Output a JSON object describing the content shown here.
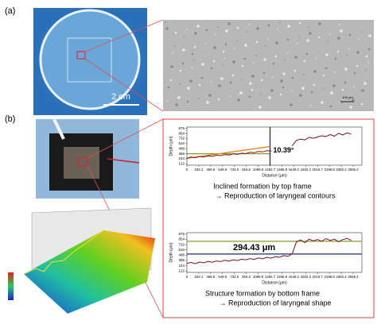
{
  "panel_a": {
    "label": "(a)",
    "scale_bar": "2 cm",
    "micro_scale": "100 μm"
  },
  "panel_b": {
    "label": "(b)"
  },
  "profiles": [
    {
      "ylabel": "Depth (μm)",
      "xlabel": "Distance (μm)",
      "annotation": "10.39°",
      "caption": [
        "Inclined formation by top frame",
        "→ Reproduction of laryngeal contours"
      ],
      "ylim": [
        90,
        1010
      ],
      "xlim": [
        0,
        2700
      ],
      "yticks": [
        122,
        244,
        366,
        488,
        610,
        732,
        854,
        976
      ],
      "xticks": [
        0,
        183.1,
        366.5,
        549.6,
        {
          "value": 733,
          "label": "733.0"
        },
        916.2,
        1099.5,
        1282.7,
        1465.8,
        1649.2,
        1832.3,
        2015.7,
        2198.8,
        2382.2,
        2565.4
      ],
      "x": [
        0,
        65,
        130,
        195,
        260,
        325,
        390,
        455,
        520,
        585,
        650,
        715,
        780,
        845,
        910,
        975,
        1040,
        1105,
        1170,
        1235,
        1300,
        1365,
        1430,
        1495,
        1560,
        1625,
        1690,
        1755,
        1820,
        1885,
        1950,
        2015,
        2080,
        2145,
        2210,
        2275,
        2340,
        2405,
        2470,
        2535
      ],
      "values": [
        255,
        290,
        270,
        300,
        285,
        315,
        300,
        330,
        320,
        345,
        335,
        365,
        350,
        380,
        370,
        400,
        390,
        420,
        410,
        440,
        430,
        470,
        455,
        500,
        480,
        560,
        690,
        720,
        700,
        760,
        740,
        770,
        800,
        780,
        830,
        790,
        860,
        820,
        870,
        840
      ],
      "color": "#7a1020",
      "ref_lines": [
        {
          "color": "#8a9a2a",
          "x": [
            0,
            1282.7
          ],
          "y": [
            366,
            366
          ]
        },
        {
          "color": "#1a2a7a",
          "x": [
            1282.7,
            1282.7
          ],
          "y": [
            90,
            1010
          ]
        },
        {
          "color": "#d9801a",
          "x": [
            0,
            1282.7
          ],
          "y": [
            255,
            540
          ]
        }
      ]
    },
    {
      "ylabel": "Depth (μm)",
      "xlabel": "Distance (μm)",
      "annotation": "294.43 μm",
      "caption": [
        "Structure formation by bottom frame",
        "→ Reproduction of laryngeal shape"
      ],
      "ylim": [
        90,
        1010
      ],
      "xlim": [
        0,
        2700
      ],
      "yticks": [
        122,
        244,
        366,
        488,
        610,
        732,
        854,
        976
      ],
      "xticks": [
        0,
        183.1,
        366.5,
        549.6,
        {
          "value": 733,
          "label": "733.0"
        },
        916.2,
        1099.5,
        1282.7,
        1465.8,
        1649.2,
        1832.3,
        2015.7,
        2198.8,
        2382.2,
        2565.4
      ],
      "x": [
        0,
        65,
        130,
        195,
        260,
        325,
        390,
        455,
        520,
        585,
        650,
        715,
        780,
        845,
        910,
        975,
        1040,
        1105,
        1170,
        1235,
        1300,
        1365,
        1430,
        1495,
        1560,
        1625,
        1690,
        1755,
        1820,
        1885,
        1950,
        2015,
        2080,
        2145,
        2210,
        2275,
        2340,
        2405,
        2470,
        2535
      ],
      "values": [
        300,
        320,
        290,
        330,
        310,
        345,
        325,
        355,
        340,
        370,
        350,
        380,
        365,
        395,
        380,
        410,
        390,
        425,
        405,
        440,
        420,
        455,
        440,
        480,
        460,
        520,
        800,
        840,
        780,
        860,
        820,
        850,
        810,
        870,
        830,
        860,
        800,
        850,
        880,
        830
      ],
      "color": "#7a1020",
      "ref_lines": [
        {
          "color": "#8a9a2a",
          "x": [
            0,
            2700
          ],
          "y": [
            810,
            810
          ]
        },
        {
          "color": "#1a2a7a",
          "x": [
            0,
            2700
          ],
          "y": [
            515,
            515
          ]
        }
      ]
    }
  ]
}
